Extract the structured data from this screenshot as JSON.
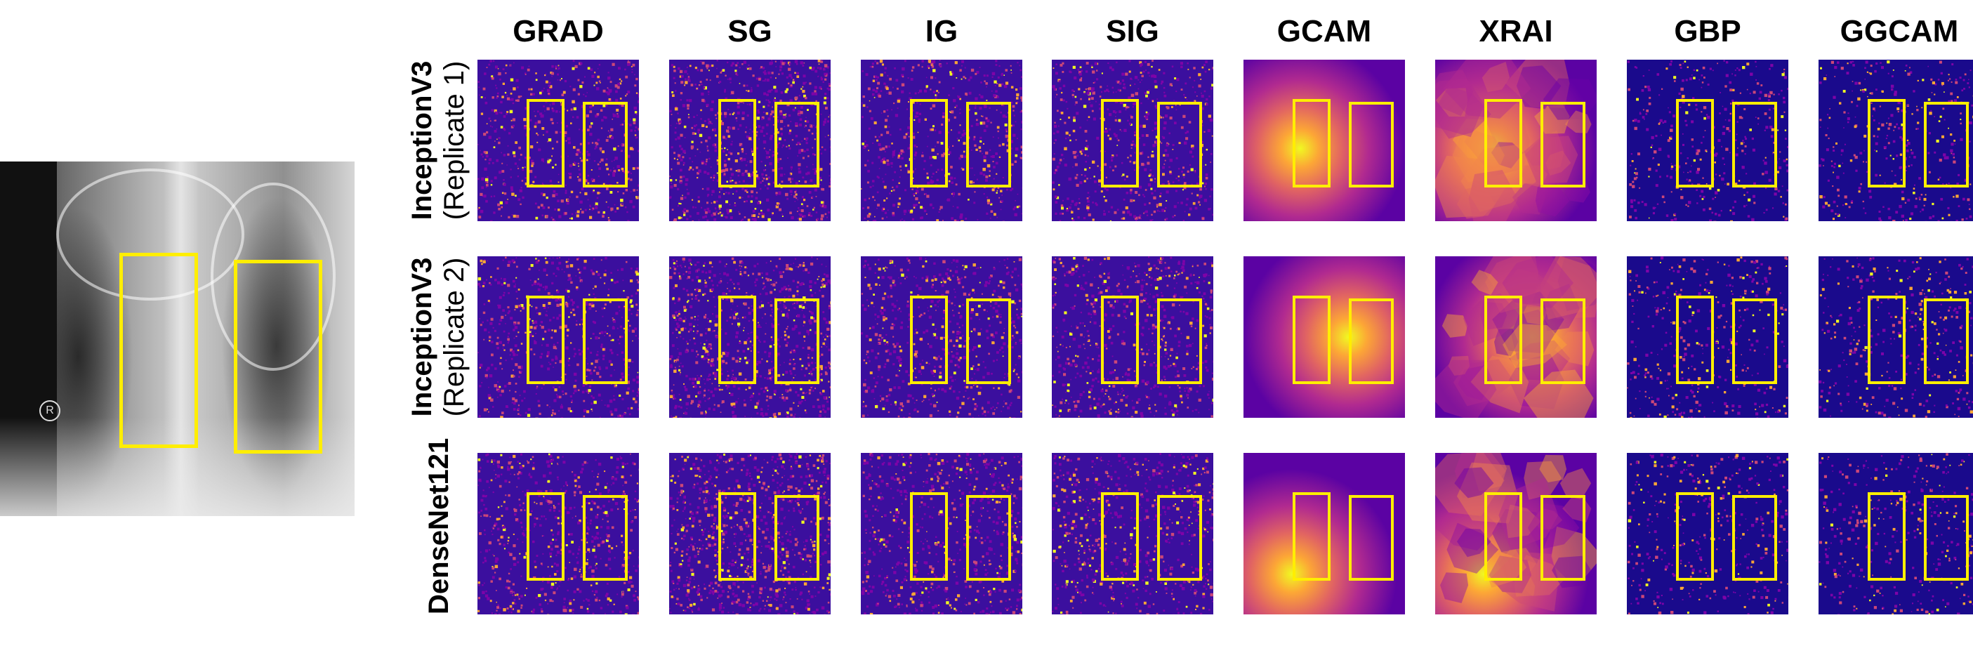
{
  "figure": {
    "columns": [
      "GRAD",
      "SG",
      "IG",
      "SIG",
      "GCAM",
      "XRAI",
      "GBP",
      "GGCAM"
    ],
    "rows": [
      {
        "label_main": "InceptionV3",
        "label_sub": "(Replicate 1)"
      },
      {
        "label_main": "InceptionV3",
        "label_sub": "(Replicate 2)"
      },
      {
        "label_main": "DenseNet121",
        "label_sub": ""
      }
    ],
    "xray_marker": "R",
    "colors": {
      "box": "#ffee00",
      "map_dark": "#0d0887",
      "map_mid": "#7e03a8",
      "map_hot": "#f0f921"
    }
  }
}
